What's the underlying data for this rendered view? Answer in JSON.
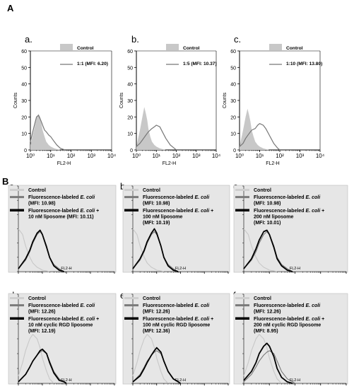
{
  "figure": {
    "label_A": "A",
    "label_B": "B"
  },
  "chart_data": [
    {
      "id": "A-a",
      "type": "area",
      "panel": "a.",
      "xlabel": "FL2-H",
      "ylabel": "Counts",
      "xscale": "log",
      "xlim": [
        1,
        10000
      ],
      "ylim": [
        0,
        60
      ],
      "xticks": [
        "10⁰",
        "10¹",
        "10²",
        "10³",
        "10⁴"
      ],
      "yticks": [
        0,
        10,
        20,
        30,
        40,
        50,
        60
      ],
      "grid": false,
      "legend": "top-right",
      "series": [
        {
          "name": "Control",
          "style": "filled",
          "color": "#c8c8c8",
          "x": [
            1,
            1.5,
            2,
            2.5,
            3,
            3.5,
            4,
            5,
            6,
            8,
            10,
            15,
            20,
            30
          ],
          "y": [
            3,
            12,
            19,
            22,
            20,
            16,
            12,
            8,
            5,
            3,
            2,
            1,
            0.5,
            0
          ]
        },
        {
          "name": "1:1 (MFI: 6.20)",
          "style": "line",
          "color": "#777777",
          "x": [
            1,
            1.5,
            2,
            2.5,
            3,
            3.5,
            4,
            5,
            6,
            8,
            10,
            15,
            20,
            30,
            50
          ],
          "y": [
            5,
            14,
            20,
            21,
            19,
            17,
            15,
            12,
            11,
            9,
            8,
            5,
            3,
            1,
            0
          ]
        }
      ]
    },
    {
      "id": "A-b",
      "type": "area",
      "panel": "b.",
      "xlabel": "FL2-H",
      "ylabel": "Counts",
      "xscale": "log",
      "xlim": [
        1,
        10000
      ],
      "ylim": [
        0,
        60
      ],
      "xticks": [
        "10⁰",
        "10¹",
        "10²",
        "10³",
        "10⁴"
      ],
      "yticks": [
        0,
        10,
        20,
        30,
        40,
        50,
        60
      ],
      "grid": false,
      "legend": "top-right",
      "series": [
        {
          "name": "Control",
          "style": "filled",
          "color": "#c8c8c8",
          "x": [
            1,
            1.5,
            2,
            2.5,
            3,
            3.5,
            4,
            5,
            6,
            8,
            10,
            15,
            20,
            30
          ],
          "y": [
            2,
            12,
            20,
            26,
            22,
            18,
            13,
            8,
            5,
            3,
            2,
            1,
            0.5,
            0
          ]
        },
        {
          "name": "1:5 (MFI: 10.37)",
          "style": "line",
          "color": "#777777",
          "x": [
            1,
            1.5,
            2,
            3,
            4,
            6,
            8,
            10,
            15,
            20,
            30,
            50,
            80,
            100
          ],
          "y": [
            2,
            4,
            6,
            9,
            11,
            13,
            14,
            15,
            14,
            11,
            7,
            3,
            1,
            0
          ]
        }
      ]
    },
    {
      "id": "A-c",
      "type": "area",
      "panel": "c.",
      "xlabel": "FL2-H",
      "ylabel": "Counts",
      "xscale": "log",
      "xlim": [
        1,
        10000
      ],
      "ylim": [
        0,
        60
      ],
      "xticks": [
        "10⁰",
        "10¹",
        "10²",
        "10³",
        "10⁴"
      ],
      "yticks": [
        0,
        10,
        20,
        30,
        40,
        50,
        60
      ],
      "grid": false,
      "legend": "top-right",
      "series": [
        {
          "name": "Control",
          "style": "filled",
          "color": "#c8c8c8",
          "x": [
            1,
            1.5,
            2,
            2.5,
            3,
            3.5,
            4,
            5,
            6,
            8,
            10,
            15,
            20,
            30
          ],
          "y": [
            2,
            12,
            20,
            25,
            21,
            17,
            12,
            8,
            5,
            3,
            2,
            1,
            0.5,
            0
          ]
        },
        {
          "name": "1:10 (MFI: 13.80)",
          "style": "line",
          "color": "#777777",
          "x": [
            1,
            1.5,
            2,
            3,
            4,
            6,
            8,
            10,
            15,
            20,
            30,
            50,
            80,
            100
          ],
          "y": [
            2,
            4,
            7,
            10,
            12,
            13,
            15,
            16,
            15,
            13,
            9,
            4,
            1,
            0
          ]
        }
      ]
    },
    {
      "id": "B-a",
      "type": "area",
      "panel": "a.",
      "xlabel": "FL2-H",
      "xscale": "log",
      "xlim": [
        1,
        10000
      ],
      "ylim": [
        0,
        60
      ],
      "legend": "top-left",
      "series": [
        {
          "name": "Control",
          "style": "line",
          "color": "#c8c8c8",
          "x": [
            1,
            1.5,
            2,
            3,
            4,
            6,
            8,
            10,
            15,
            20
          ],
          "y": [
            30,
            26,
            18,
            10,
            6,
            3,
            2,
            1,
            0.5,
            0
          ]
        },
        {
          "name": "Fluorescence-labeled E. coli (MFI: 10.98)",
          "style": "line",
          "color": "#777777",
          "x": [
            1,
            2,
            3,
            4,
            6,
            8,
            10,
            15,
            20,
            30,
            50,
            80
          ],
          "y": [
            2,
            8,
            14,
            20,
            26,
            28,
            26,
            18,
            10,
            5,
            2,
            0
          ]
        },
        {
          "name": "Fluorescence-labeled E. coli + 10 nM liposome (MFI: 10.11)",
          "style": "line",
          "color": "#000000",
          "x": [
            1,
            2,
            3,
            4,
            6,
            8,
            10,
            15,
            20,
            30,
            50,
            80
          ],
          "y": [
            2,
            9,
            15,
            21,
            27,
            29,
            26,
            17,
            10,
            4,
            1,
            0
          ]
        }
      ]
    },
    {
      "id": "B-b",
      "type": "area",
      "panel": "b.",
      "xlabel": "FL2-H",
      "xscale": "log",
      "xlim": [
        1,
        10000
      ],
      "ylim": [
        0,
        60
      ],
      "legend": "top-left",
      "series": [
        {
          "name": "Control",
          "style": "line",
          "color": "#c8c8c8",
          "x": [
            1,
            1.5,
            2,
            3,
            4,
            6,
            8,
            10,
            15,
            20
          ],
          "y": [
            30,
            26,
            18,
            10,
            6,
            3,
            2,
            1,
            0.5,
            0
          ]
        },
        {
          "name": "Fluorescence-labeled E. coli (MFI: 10.98)",
          "style": "line",
          "color": "#777777",
          "x": [
            1,
            2,
            3,
            4,
            6,
            8,
            10,
            15,
            20,
            30,
            50,
            80
          ],
          "y": [
            2,
            8,
            14,
            20,
            26,
            28,
            26,
            18,
            10,
            5,
            2,
            0
          ]
        },
        {
          "name": "Fluorescence-labeled E. coli + 100 nM liposome (MFI: 10.19)",
          "style": "line",
          "color": "#000000",
          "x": [
            1,
            2,
            3,
            4,
            6,
            8,
            10,
            15,
            20,
            30,
            50,
            80
          ],
          "y": [
            2,
            9,
            15,
            21,
            27,
            30,
            27,
            18,
            10,
            4,
            1,
            0
          ]
        }
      ]
    },
    {
      "id": "B-c",
      "type": "area",
      "panel": "c.",
      "xlabel": "FL2-H",
      "xscale": "log",
      "xlim": [
        1,
        10000
      ],
      "ylim": [
        0,
        60
      ],
      "legend": "top-left",
      "series": [
        {
          "name": "Control",
          "style": "line",
          "color": "#c8c8c8",
          "x": [
            1,
            1.5,
            2,
            3,
            4,
            6,
            8,
            10,
            15,
            20
          ],
          "y": [
            30,
            26,
            18,
            10,
            6,
            3,
            2,
            1,
            0.5,
            0
          ]
        },
        {
          "name": "Fluorescence-labeled E. coli (MFI: 10.98)",
          "style": "line",
          "color": "#777777",
          "x": [
            1,
            2,
            3,
            4,
            6,
            8,
            10,
            15,
            20,
            30,
            50,
            80
          ],
          "y": [
            2,
            8,
            14,
            20,
            26,
            28,
            26,
            18,
            10,
            5,
            2,
            0
          ]
        },
        {
          "name": "Fluorescence-labeled E. coli + 200 nM liposome (MFI: 10.01)",
          "style": "line",
          "color": "#000000",
          "x": [
            1,
            2,
            3,
            4,
            6,
            8,
            10,
            15,
            20,
            30,
            50,
            80
          ],
          "y": [
            2,
            9,
            16,
            22,
            28,
            29,
            26,
            17,
            9,
            4,
            1,
            0
          ]
        }
      ]
    },
    {
      "id": "B-d",
      "type": "area",
      "panel": "d.",
      "xlabel": "FL2-H",
      "xscale": "log",
      "xlim": [
        1,
        10000
      ],
      "ylim": [
        0,
        60
      ],
      "legend": "top-left",
      "series": [
        {
          "name": "Control",
          "style": "line",
          "color": "#c8c8c8",
          "x": [
            1,
            1.5,
            2,
            3,
            4,
            6,
            8,
            10,
            15,
            20,
            30
          ],
          "y": [
            5,
            14,
            22,
            30,
            33,
            30,
            24,
            17,
            8,
            3,
            0
          ]
        },
        {
          "name": "Fluorescence-labeled E. coli (MFI: 12.26)",
          "style": "line",
          "color": "#777777",
          "x": [
            1,
            2,
            3,
            4,
            6,
            8,
            10,
            15,
            20,
            30,
            50,
            80,
            100
          ],
          "y": [
            1,
            6,
            11,
            15,
            19,
            21,
            22,
            20,
            15,
            8,
            3,
            1,
            0
          ]
        },
        {
          "name": "Fluorescence-labeled E. coli + 10 nM cyclic RGD liposome (MFI: 12.19)",
          "style": "line",
          "color": "#000000",
          "x": [
            1,
            2,
            3,
            4,
            6,
            8,
            10,
            15,
            20,
            30,
            50,
            80,
            100
          ],
          "y": [
            1,
            6,
            11,
            15,
            19,
            22,
            23,
            20,
            14,
            7,
            2,
            1,
            0
          ]
        }
      ]
    },
    {
      "id": "B-e",
      "type": "area",
      "panel": "e.",
      "xlabel": "FL2-H",
      "xscale": "log",
      "xlim": [
        1,
        10000
      ],
      "ylim": [
        0,
        60
      ],
      "legend": "top-left",
      "series": [
        {
          "name": "Control",
          "style": "line",
          "color": "#c8c8c8",
          "x": [
            1,
            1.5,
            2,
            3,
            4,
            6,
            8,
            10,
            15,
            20,
            30
          ],
          "y": [
            5,
            14,
            22,
            30,
            33,
            30,
            24,
            17,
            8,
            3,
            0
          ]
        },
        {
          "name": "Fluorescence-labeled E. coli (MFI: 12.26)",
          "style": "line",
          "color": "#777777",
          "x": [
            1,
            2,
            3,
            4,
            6,
            8,
            10,
            15,
            20,
            30,
            50,
            80,
            100
          ],
          "y": [
            1,
            6,
            11,
            15,
            19,
            21,
            22,
            20,
            15,
            8,
            3,
            1,
            0
          ]
        },
        {
          "name": "Fluorescence-labeled E. coli + 100 nM cyclic RGD liposome (MFI: 12.36)",
          "style": "line",
          "color": "#000000",
          "x": [
            1,
            2,
            3,
            4,
            6,
            8,
            10,
            15,
            20,
            30,
            50,
            80,
            100
          ],
          "y": [
            1,
            5,
            10,
            14,
            19,
            22,
            24,
            21,
            15,
            8,
            3,
            1,
            0
          ]
        }
      ]
    },
    {
      "id": "B-f",
      "type": "area",
      "panel": "f.",
      "xlabel": "FL2-H",
      "xscale": "log",
      "xlim": [
        1,
        10000
      ],
      "ylim": [
        0,
        60
      ],
      "legend": "top-left",
      "series": [
        {
          "name": "Control",
          "style": "line",
          "color": "#c8c8c8",
          "x": [
            1,
            1.5,
            2,
            3,
            4,
            6,
            8,
            10,
            15,
            20,
            30
          ],
          "y": [
            5,
            14,
            22,
            30,
            33,
            30,
            24,
            17,
            8,
            3,
            0
          ]
        },
        {
          "name": "Fluorescence-labeled E. coli (MFI: 12.26)",
          "style": "line",
          "color": "#777777",
          "x": [
            1,
            2,
            3,
            4,
            6,
            8,
            10,
            15,
            20,
            30,
            50,
            80,
            100
          ],
          "y": [
            1,
            6,
            11,
            15,
            19,
            21,
            22,
            20,
            15,
            8,
            3,
            1,
            0
          ]
        },
        {
          "name": "Fluorescence-labeled E. coli + 200 nM cyclic RGD liposome (MFI: 8.95)",
          "style": "line",
          "color": "#000000",
          "x": [
            1,
            2,
            3,
            4,
            6,
            8,
            10,
            15,
            20,
            30,
            50,
            80
          ],
          "y": [
            2,
            8,
            14,
            20,
            25,
            27,
            25,
            18,
            10,
            4,
            1,
            0
          ]
        }
      ]
    }
  ]
}
